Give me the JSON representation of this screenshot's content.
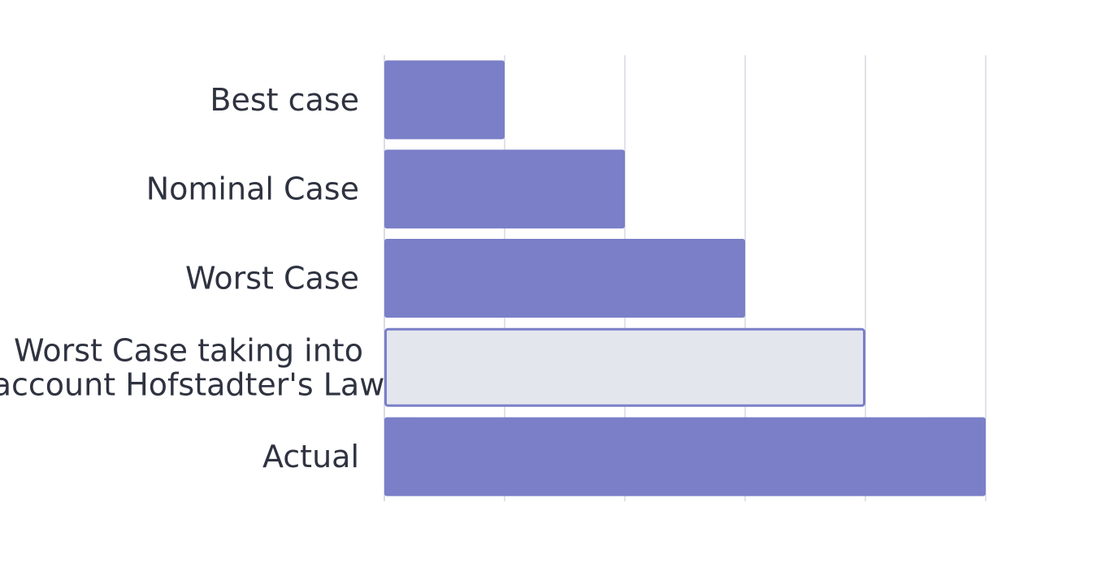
{
  "chart_data": {
    "type": "bar",
    "orientation": "horizontal",
    "title": "",
    "xlabel": "",
    "ylabel": "",
    "categories": [
      "Best case",
      "Nominal Case",
      "Worst Case",
      "Worst Case taking into account Hofstadter's Law",
      "Actual"
    ],
    "category_label_lines": [
      [
        "Best case"
      ],
      [
        "Nominal Case"
      ],
      [
        "Worst Case"
      ],
      [
        "Worst Case taking into",
        "account Hofstadter's Law"
      ],
      [
        "Actual"
      ]
    ],
    "values": [
      1,
      2,
      3,
      4,
      5
    ],
    "xlim": [
      0,
      5
    ],
    "x_tick_labels_shown": false,
    "grid": true,
    "legend": "none",
    "highlighted_category": "Worst Case taking into account Hofstadter's Law",
    "colors": {
      "bar": "#7a7fc8",
      "highlight_fill": "#e4e6ee",
      "highlight_stroke": "#7a7fc8",
      "grid": "#d8d9e3",
      "label": "#2f3340"
    }
  }
}
